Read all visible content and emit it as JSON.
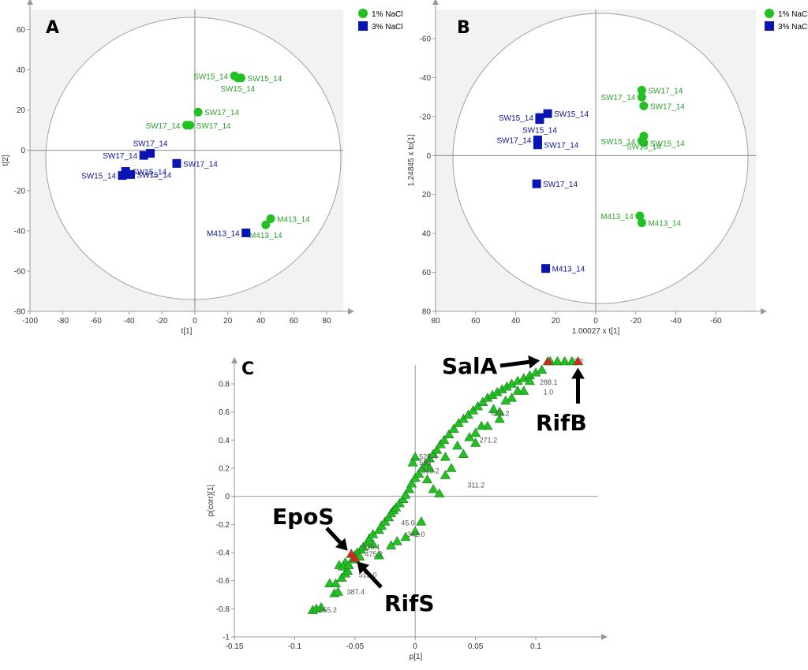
{
  "colors": {
    "green": "#22c022",
    "green_text": "#2ea02e",
    "blue": "#0a14b4",
    "blue_text": "#0a1496",
    "red": "#e02020",
    "outer": "#f2f2f2"
  },
  "chart_data": [
    {
      "panel": "A",
      "type": "scatter",
      "xlabel": "t[1]",
      "ylabel": "t[2]",
      "xlim": [
        -100,
        90
      ],
      "ylim": [
        -80,
        70
      ],
      "x_ticks": [
        "-100",
        "-80",
        "-60",
        "-40",
        "-20",
        "0",
        "20",
        "40",
        "60",
        "80"
      ],
      "y_ticks": [
        "-80",
        "-60",
        "-40",
        "-20",
        "0",
        "20",
        "40",
        "60"
      ],
      "legend": [
        {
          "label": "1% NaCl",
          "marker": "circle"
        },
        {
          "label": "3% NaCl",
          "marker": "square"
        }
      ],
      "series": [
        {
          "name": "1% NaCl",
          "marker": "circle",
          "points": [
            {
              "x": 24,
              "y": 37,
              "label": "SW15_14",
              "pos": "left"
            },
            {
              "x": 28,
              "y": 36,
              "label": "SW15_14",
              "pos": "right"
            },
            {
              "x": 26,
              "y": 36,
              "label": "SW15_14",
              "pos": "below"
            },
            {
              "x": 2,
              "y": 19,
              "label": "SW17_14",
              "pos": "right"
            },
            {
              "x": -5,
              "y": 12.5,
              "label": "SW17_14",
              "pos": "left"
            },
            {
              "x": -3,
              "y": 12.5,
              "label": "SW17_14",
              "pos": "right"
            },
            {
              "x": 46,
              "y": -34,
              "label": "M413_14",
              "pos": "right"
            },
            {
              "x": 43,
              "y": -37,
              "label": "M413_14",
              "pos": "below"
            }
          ]
        },
        {
          "name": "3% NaCl",
          "marker": "square",
          "points": [
            {
              "x": -27,
              "y": -1.5,
              "label": "SW17_14",
              "pos": "above"
            },
            {
              "x": -31,
              "y": -2.5,
              "label": "SW17_14",
              "pos": "left"
            },
            {
              "x": -11,
              "y": -6.5,
              "label": "SW17_14",
              "pos": "right"
            },
            {
              "x": -42,
              "y": -10.5,
              "label": "SW15_14",
              "pos": "right"
            },
            {
              "x": -44,
              "y": -12.5,
              "label": "SW15_14",
              "pos": "left"
            },
            {
              "x": -39,
              "y": -12,
              "label": "SW15_14",
              "pos": "right"
            },
            {
              "x": 31,
              "y": -41,
              "label": "M413_14",
              "pos": "left"
            }
          ]
        }
      ]
    },
    {
      "panel": "B",
      "type": "scatter",
      "xlabel": "1.00027 x t[1]",
      "ylabel": "1.24845 x to[1]",
      "xlim": [
        80,
        -80
      ],
      "ylim": [
        80,
        -75
      ],
      "x_ticks": [
        "80",
        "60",
        "40",
        "20",
        "0",
        "-20",
        "-40",
        "-60"
      ],
      "y_ticks": [
        "80",
        "60",
        "40",
        "20",
        "0",
        "-20",
        "-40",
        "-60"
      ],
      "legend": [
        {
          "label": "1% NaCl",
          "marker": "circle"
        },
        {
          "label": "3% NaCl",
          "marker": "square"
        }
      ],
      "series": [
        {
          "name": "1% NaCl",
          "marker": "circle",
          "points": [
            {
              "x": -23,
              "y": -33.5,
              "label": "SW17_14",
              "pos": "right"
            },
            {
              "x": -23,
              "y": -30,
              "label": "SW17_14",
              "pos": "left"
            },
            {
              "x": -24,
              "y": -25.5,
              "label": "SW17_14",
              "pos": "right"
            },
            {
              "x": -24,
              "y": -6.5,
              "label": "SW15_14",
              "pos": "right"
            },
            {
              "x": -23,
              "y": -7.5,
              "label": "SW15_14",
              "pos": "left"
            },
            {
              "x": -24,
              "y": -10,
              "label": "SW15_14",
              "pos": "below"
            },
            {
              "x": -22,
              "y": 31,
              "label": "M413_14",
              "pos": "left"
            },
            {
              "x": -23,
              "y": 34.5,
              "label": "M413_14",
              "pos": "right"
            }
          ]
        },
        {
          "name": "3% NaCl",
          "marker": "square",
          "points": [
            {
              "x": 24,
              "y": -21.5,
              "label": "SW15_14",
              "pos": "right"
            },
            {
              "x": 28,
              "y": -19.5,
              "label": "SW15_14",
              "pos": "left"
            },
            {
              "x": 28,
              "y": -18.5,
              "label": "SW15_14",
              "pos": "below"
            },
            {
              "x": 29,
              "y": -8,
              "label": "SW17_14",
              "pos": "left"
            },
            {
              "x": 29,
              "y": -5.5,
              "label": "SW17_14",
              "pos": "right"
            },
            {
              "x": 29.5,
              "y": 14.5,
              "label": "SW17_14",
              "pos": "right"
            },
            {
              "x": 25,
              "y": 58,
              "label": "M413_14",
              "pos": "right"
            }
          ]
        }
      ]
    },
    {
      "panel": "C",
      "type": "scatter",
      "xlabel": "p[1]",
      "ylabel": "p(corr)[1]",
      "xlim": [
        -0.15,
        0.15
      ],
      "ylim": [
        -1,
        0.95
      ],
      "x_ticks": [
        "-0.15",
        "-0.1",
        "-0.05",
        "0",
        "0.05",
        "0.1"
      ],
      "y_ticks": [
        "0.8",
        "0.6",
        "0.4",
        "0.2",
        "0",
        "-0.2",
        "-0.4",
        "-0.6",
        "-0.8",
        "-1"
      ],
      "series": [
        {
          "name": "variables",
          "marker": "triangle",
          "points": [
            [
              -0.085,
              -0.81
            ],
            [
              -0.082,
              -0.8
            ],
            [
              -0.078,
              -0.79
            ],
            [
              -0.067,
              -0.69
            ],
            [
              -0.064,
              -0.68
            ],
            [
              -0.071,
              -0.62
            ],
            [
              -0.066,
              -0.62
            ],
            [
              -0.061,
              -0.58
            ],
            [
              -0.058,
              -0.55
            ],
            [
              -0.056,
              -0.53
            ],
            [
              -0.063,
              -0.49
            ],
            [
              -0.058,
              -0.47
            ],
            [
              -0.052,
              -0.45
            ],
            [
              -0.05,
              -0.42
            ],
            [
              -0.048,
              -0.4
            ],
            [
              -0.045,
              -0.38
            ],
            [
              -0.046,
              -0.43
            ],
            [
              -0.043,
              -0.36
            ],
            [
              -0.04,
              -0.33
            ],
            [
              -0.038,
              -0.3
            ],
            [
              -0.035,
              -0.27
            ],
            [
              -0.03,
              -0.24
            ],
            [
              -0.028,
              -0.21
            ],
            [
              -0.025,
              -0.18
            ],
            [
              -0.022,
              -0.15
            ],
            [
              -0.02,
              -0.12
            ],
            [
              -0.018,
              -0.1
            ],
            [
              -0.016,
              -0.08
            ],
            [
              -0.013,
              -0.05
            ],
            [
              -0.01,
              -0.02
            ],
            [
              -0.008,
              0.01
            ],
            [
              -0.005,
              0.05
            ],
            [
              -0.003,
              0.09
            ],
            [
              0.0,
              0.13
            ],
            [
              0.003,
              0.16
            ],
            [
              0.006,
              0.2
            ],
            [
              0.009,
              0.23
            ],
            [
              0.012,
              0.27
            ],
            [
              0.015,
              0.3
            ],
            [
              0.018,
              0.33
            ],
            [
              0.021,
              0.37
            ],
            [
              0.024,
              0.4
            ],
            [
              0.028,
              0.44
            ],
            [
              0.032,
              0.48
            ],
            [
              0.036,
              0.52
            ],
            [
              0.04,
              0.55
            ],
            [
              0.044,
              0.58
            ],
            [
              0.048,
              0.61
            ],
            [
              0.052,
              0.64
            ],
            [
              0.056,
              0.67
            ],
            [
              0.06,
              0.7
            ],
            [
              0.064,
              0.72
            ],
            [
              0.068,
              0.74
            ],
            [
              0.072,
              0.76
            ],
            [
              0.076,
              0.78
            ],
            [
              0.08,
              0.8
            ],
            [
              0.085,
              0.82
            ],
            [
              0.09,
              0.84
            ],
            [
              0.095,
              0.86
            ],
            [
              0.1,
              0.88
            ],
            [
              0.105,
              0.9
            ],
            [
              0.112,
              0.96
            ],
            [
              0.118,
              0.96
            ],
            [
              0.124,
              0.96
            ],
            [
              0.13,
              0.96
            ],
            [
              0.0,
              0.28
            ],
            [
              -0.002,
              0.24
            ],
            [
              0.01,
              0.12
            ],
            [
              0.015,
              0.05
            ],
            [
              0.02,
              0.02
            ],
            [
              0.025,
              0.15
            ],
            [
              0.03,
              0.2
            ],
            [
              0.04,
              0.3
            ],
            [
              0.05,
              0.38
            ],
            [
              0.06,
              0.5
            ],
            [
              0.07,
              0.6
            ],
            [
              0.08,
              0.7
            ],
            [
              0.09,
              0.75
            ],
            [
              -0.015,
              -0.32
            ],
            [
              -0.02,
              -0.35
            ],
            [
              -0.03,
              -0.42
            ],
            [
              -0.06,
              -0.5
            ],
            [
              -0.055,
              -0.49
            ],
            [
              -0.035,
              -0.34
            ],
            [
              0.005,
              -0.18
            ],
            [
              0.0,
              -0.25
            ],
            [
              -0.008,
              -0.29
            ],
            [
              0.045,
              0.42
            ],
            [
              0.055,
              0.5
            ],
            [
              0.065,
              0.62
            ],
            [
              0.075,
              0.68
            ],
            [
              0.085,
              0.75
            ],
            [
              0.095,
              0.82
            ],
            [
              0.035,
              0.36
            ],
            [
              0.025,
              0.28
            ],
            [
              0.012,
              0.2
            ],
            [
              0.07,
              0.55
            ],
            [
              0.05,
              0.45
            ]
          ]
        }
      ],
      "highlighted": [
        {
          "name": "SalA",
          "x": 0.11,
          "y": 0.96
        },
        {
          "name": "RifB",
          "x": 0.135,
          "y": 0.96
        },
        {
          "name": "EpoS",
          "x": -0.053,
          "y": -0.41
        },
        {
          "name": "RifS",
          "x": -0.05,
          "y": -0.44
        }
      ],
      "point_labels": [
        {
          "x": 0.0,
          "y": 0.28,
          "text": "525.4"
        },
        {
          "x": 0.0,
          "y": 0.24,
          "text": "563"
        },
        {
          "x": 0.06,
          "y": 0.59,
          "text": "679.2"
        },
        {
          "x": 0.05,
          "y": 0.4,
          "text": "271.2"
        },
        {
          "x": 0.04,
          "y": 0.08,
          "text": "311.2"
        },
        {
          "x": 0.002,
          "y": 0.18,
          "text": "313.2"
        },
        {
          "x": -0.01,
          "y": -0.27,
          "text": "342.0"
        },
        {
          "x": -0.015,
          "y": -0.19,
          "text": "45.0"
        },
        {
          "x": 0.1,
          "y": 0.81,
          "text": "288.1"
        },
        {
          "x": 0.103,
          "y": 0.74,
          "text": "1.0"
        },
        {
          "x": 0.128,
          "y": 0.96,
          "text": "7.2"
        },
        {
          "x": -0.047,
          "y": -0.36,
          "text": "216.1"
        },
        {
          "x": -0.045,
          "y": -0.41,
          "text": "475.2"
        },
        {
          "x": -0.05,
          "y": -0.56,
          "text": "515.0"
        },
        {
          "x": -0.06,
          "y": -0.68,
          "text": "387.4"
        },
        {
          "x": -0.083,
          "y": -0.81,
          "text": "355.2"
        }
      ],
      "annotations": [
        {
          "text": "SalA",
          "pointer_to": "SalA"
        },
        {
          "text": "RifB",
          "pointer_to": "RifB"
        },
        {
          "text": "EpoS",
          "pointer_to": "EpoS"
        },
        {
          "text": "RifS",
          "pointer_to": "RifS"
        }
      ]
    }
  ]
}
